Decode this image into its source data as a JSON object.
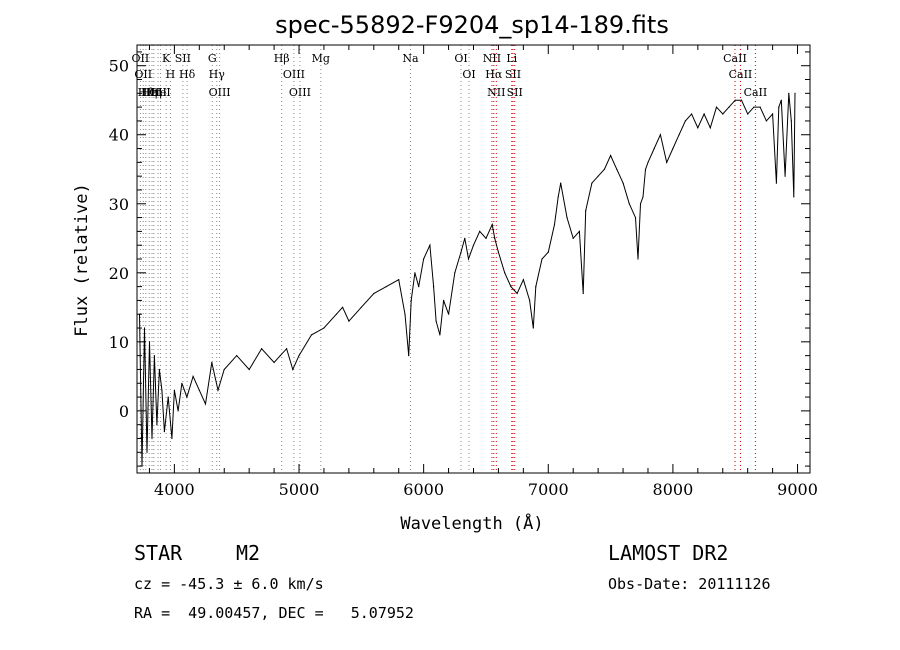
{
  "chart_data": {
    "type": "line",
    "title": "spec-55892-F9204_sp14-189.fits",
    "xlabel": "Wavelength (Å)",
    "ylabel": "Flux (relative)",
    "xlim": [
      3700,
      9100
    ],
    "ylim": [
      -9,
      53
    ],
    "xticks": [
      4000,
      5000,
      6000,
      7000,
      8000,
      9000
    ],
    "yticks": [
      0,
      10,
      20,
      30,
      40,
      50
    ],
    "series": [
      {
        "x": [
          3720,
          3740,
          3760,
          3780,
          3800,
          3820,
          3840,
          3860,
          3880,
          3900,
          3920,
          3950,
          3980,
          4000,
          4030,
          4060,
          4100,
          4150,
          4200,
          4250,
          4300,
          4350,
          4400,
          4500,
          4600,
          4700,
          4800,
          4850,
          4900,
          4950,
          5000,
          5100,
          5200,
          5300,
          5350,
          5400,
          5500,
          5600,
          5700,
          5800,
          5850,
          5880,
          5900,
          5930,
          5960,
          6000,
          6050,
          6080,
          6100,
          6130,
          6160,
          6200,
          6250,
          6300,
          6330,
          6360,
          6400,
          6450,
          6500,
          6550,
          6570,
          6600,
          6650,
          6700,
          6750,
          6800,
          6850,
          6880,
          6900,
          6950,
          7000,
          7050,
          7080,
          7100,
          7150,
          7200,
          7250,
          7280,
          7300,
          7350,
          7400,
          7450,
          7500,
          7550,
          7600,
          7650,
          7700,
          7720,
          7740,
          7760,
          7780,
          7800,
          7850,
          7900,
          7950,
          8000,
          8050,
          8100,
          8150,
          8200,
          8250,
          8300,
          8350,
          8400,
          8450,
          8500,
          8550,
          8600,
          8650,
          8700,
          8750,
          8800,
          8830,
          8850,
          8870,
          8900,
          8930,
          8950,
          8970,
          8980
        ],
        "y": [
          14,
          -8,
          12,
          -6,
          10,
          -4,
          8,
          -2,
          6,
          3,
          -3,
          2,
          -4,
          3,
          0,
          4,
          2,
          5,
          3,
          1,
          7,
          3,
          6,
          8,
          6,
          9,
          7,
          8,
          9,
          6,
          8,
          11,
          12,
          14,
          15,
          13,
          15,
          17,
          18,
          19,
          14,
          8,
          16,
          20,
          18,
          22,
          24,
          18,
          13,
          11,
          16,
          14,
          20,
          23,
          25,
          22,
          24,
          26,
          25,
          27,
          25,
          23,
          20,
          18,
          17,
          19,
          16,
          12,
          18,
          22,
          23,
          27,
          31,
          33,
          28,
          25,
          26,
          17,
          29,
          33,
          34,
          35,
          37,
          35,
          33,
          30,
          28,
          22,
          30,
          31,
          35,
          36,
          38,
          40,
          36,
          38,
          40,
          42,
          43,
          41,
          43,
          41,
          44,
          43,
          44,
          45,
          45,
          43,
          44,
          44,
          42,
          43,
          33,
          44,
          45,
          34,
          46,
          42,
          31,
          46
        ]
      }
    ],
    "line_markers": [
      {
        "wl": 3727,
        "label": "OII"
      },
      {
        "wl": 3750,
        "label": "OII"
      },
      {
        "wl": 3771,
        "label": "Hθ"
      },
      {
        "wl": 3798,
        "label": "Hη"
      },
      {
        "wl": 3820,
        "label": "HeI"
      },
      {
        "wl": 3835,
        "label": "Hη"
      },
      {
        "wl": 3869,
        "label": "OII"
      },
      {
        "wl": 3889,
        "label": "HeI"
      },
      {
        "wl": 3934,
        "label": "K"
      },
      {
        "wl": 3968,
        "label": "H"
      },
      {
        "wl": 4068,
        "label": "SII"
      },
      {
        "wl": 4102,
        "label": "Hδ"
      },
      {
        "wl": 4304,
        "label": "G"
      },
      {
        "wl": 4340,
        "label": "Hγ"
      },
      {
        "wl": 4363,
        "label": "OIII"
      },
      {
        "wl": 4861,
        "label": "Hβ"
      },
      {
        "wl": 4959,
        "label": "OIII"
      },
      {
        "wl": 5007,
        "label": "OIII"
      },
      {
        "wl": 5175,
        "label": "Mg"
      },
      {
        "wl": 5894,
        "label": "Na"
      },
      {
        "wl": 6300,
        "label": "OI"
      },
      {
        "wl": 6364,
        "label": "OI"
      },
      {
        "wl": 6548,
        "label": "NII"
      },
      {
        "wl": 6563,
        "label": "Hα"
      },
      {
        "wl": 6583,
        "label": "NII"
      },
      {
        "wl": 6707,
        "label": "Li"
      },
      {
        "wl": 6717,
        "label": "SII"
      },
      {
        "wl": 6731,
        "label": "SII"
      },
      {
        "wl": 8498,
        "label": "CaII"
      },
      {
        "wl": 8542,
        "label": "CaII"
      },
      {
        "wl": 8662,
        "label": "CaII"
      }
    ]
  },
  "info": {
    "object_class": "STAR",
    "subclass": "M2",
    "survey": "LAMOST DR2",
    "redshift": "cz = -45.3 ± 6.0 km/s",
    "obs_date": "Obs-Date: 20111126",
    "coords": "RA =  49.00457, DEC =   5.07952"
  },
  "colors": {
    "spectrum": "#000000",
    "line_marker": "#cc0000",
    "marker_dotted": "#888888"
  }
}
